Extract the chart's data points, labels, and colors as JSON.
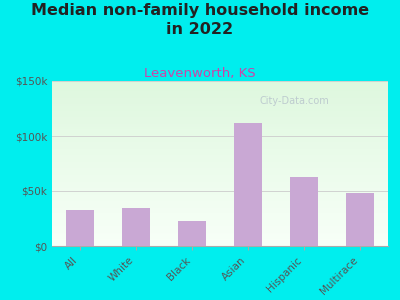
{
  "title": "Median non-family household income\nin 2022",
  "subtitle": "Leavenworth, KS",
  "categories": [
    "All",
    "White",
    "Black",
    "Asian",
    "Hispanic",
    "Multirace"
  ],
  "values": [
    33000,
    35000,
    23000,
    112000,
    63000,
    48000
  ],
  "bar_color": "#c9a8d4",
  "title_fontsize": 11.5,
  "subtitle_fontsize": 9.5,
  "subtitle_color": "#cc44aa",
  "title_color": "#222222",
  "background_color": "#00eeee",
  "ylim": [
    0,
    150000
  ],
  "yticks": [
    0,
    50000,
    100000,
    150000
  ],
  "ytick_labels": [
    "$0",
    "$50k",
    "$100k",
    "$150k"
  ],
  "watermark": "City-Data.com",
  "tick_label_fontsize": 7.5
}
